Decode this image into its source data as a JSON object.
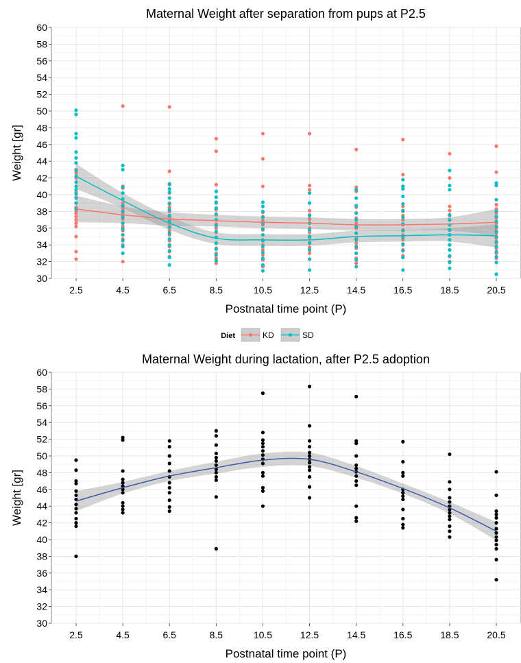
{
  "chart_data": [
    {
      "type": "scatter",
      "title": "Maternal Weight after separation from pups at P2.5",
      "xlabel": "Postnatal time point (P)",
      "ylabel": "Weight [gr]",
      "x": [
        2.5,
        4.5,
        6.5,
        8.5,
        10.5,
        12.5,
        14.5,
        16.5,
        18.5,
        20.5
      ],
      "x_tick_labels": [
        "2.5",
        "4.5",
        "6.5",
        "8.5",
        "10.5",
        "12.5",
        "14.5",
        "16.5",
        "18.5",
        "20.5"
      ],
      "ylim": [
        30,
        60
      ],
      "y_ticks": [
        30,
        32,
        34,
        36,
        38,
        40,
        42,
        44,
        46,
        48,
        50,
        52,
        54,
        56,
        58,
        60
      ],
      "grid": true,
      "legend": {
        "title": "Diet",
        "placement": "bottom",
        "entries": [
          "KD",
          "SD"
        ]
      },
      "series": [
        {
          "name": "KD",
          "color": "#F8766D",
          "points": [
            [
              [
                38.5,
                38.1,
                37.8,
                37.4,
                37.0,
                36.6,
                36.2,
                35.0,
                33.2,
                32.3,
                39.0,
                39.7,
                40.3,
                42.0,
                42.6,
                43.0
              ]
            ],
            [
              [
                50.6,
                41.0,
                40.8,
                39.0,
                38.6,
                38.3,
                37.8,
                37.5,
                37.1,
                36.6,
                36.2,
                35.7,
                35.2,
                34.7,
                34.0,
                32.0
              ]
            ],
            [
              [
                50.5,
                42.8,
                41.2,
                40.2,
                39.0,
                38.5,
                38.0,
                37.4,
                37.0,
                36.6,
                36.2,
                35.7,
                35.2,
                34.5,
                33.8,
                33.2,
                32.6
              ]
            ],
            [
              [
                46.7,
                45.2,
                41.2,
                39.0,
                38.2,
                37.6,
                37.0,
                36.5,
                36.0,
                35.5,
                34.9,
                34.2,
                33.6,
                33.0,
                32.4,
                31.8
              ]
            ],
            [
              [
                47.3,
                44.3,
                41.0,
                38.6,
                37.9,
                37.4,
                36.9,
                36.4,
                35.8,
                35.2,
                34.6,
                34.0,
                33.4,
                32.8,
                32.2,
                31.4
              ]
            ],
            [
              [
                47.3,
                41.1,
                40.6,
                38.1,
                37.6,
                37.1,
                36.6,
                36.0,
                35.5,
                34.9,
                34.3,
                33.7,
                33.0,
                32.3
              ]
            ],
            [
              [
                45.4,
                40.9,
                40.4,
                38.5,
                37.8,
                37.2,
                36.6,
                36.0,
                35.4,
                34.8,
                34.2,
                33.6,
                33.0,
                32.4,
                31.8
              ]
            ],
            [
              [
                46.6,
                42.4,
                41.0,
                38.6,
                38.0,
                37.5,
                37.0,
                36.4,
                35.8,
                35.2,
                34.6,
                34.0,
                33.4,
                32.7
              ]
            ],
            [
              [
                44.9,
                42.0,
                38.6,
                38.1,
                37.5,
                37.0,
                36.4,
                35.8,
                35.2,
                34.6,
                34.0,
                33.4,
                32.6,
                32.0
              ]
            ],
            [
              [
                45.8,
                42.7,
                38.8,
                38.3,
                37.8,
                37.2,
                36.6,
                36.0,
                35.4,
                34.8,
                34.2,
                33.6,
                33.0,
                32.4
              ]
            ]
          ],
          "smooth": [
            38.3,
            37.6,
            37.1,
            36.9,
            36.7,
            36.6,
            36.4,
            36.4,
            36.5,
            36.7
          ]
        },
        {
          "name": "SD",
          "color": "#00BFC4",
          "points": [
            [
              [
                50.1,
                49.6,
                47.3,
                46.8,
                45.1,
                44.4,
                43.8,
                42.9,
                42.2,
                41.5,
                41.0,
                40.6,
                40.1,
                39.6,
                39.0,
                38.3
              ]
            ],
            [
              [
                43.5,
                43.0,
                40.9,
                40.2,
                39.5,
                38.7,
                38.0,
                37.3,
                36.6,
                35.9,
                35.2,
                34.5,
                33.8,
                33.0
              ]
            ],
            [
              [
                41.3,
                40.7,
                40.3,
                39.6,
                38.9,
                38.2,
                37.5,
                36.8,
                36.1,
                35.4,
                34.7,
                34.0,
                33.3,
                32.5,
                31.6
              ]
            ],
            [
              [
                40.4,
                39.7,
                39.1,
                38.4,
                37.7,
                37.0,
                36.3,
                35.6,
                34.9,
                34.2,
                33.5,
                32.8,
                32.1
              ]
            ],
            [
              [
                39.1,
                38.6,
                38.0,
                37.3,
                36.6,
                35.9,
                35.2,
                34.5,
                33.8,
                33.1,
                32.4,
                31.6,
                30.9
              ]
            ],
            [
              [
                40.2,
                39.0,
                37.5,
                36.6,
                35.8,
                35.0,
                34.2,
                33.4,
                32.3,
                31.0
              ]
            ],
            [
              [
                40.6,
                39.6,
                38.7,
                37.8,
                37.0,
                36.2,
                35.4,
                34.6,
                33.8,
                33.0,
                32.2,
                31.4
              ]
            ],
            [
              [
                41.8,
                41.0,
                40.7,
                39.8,
                38.9,
                38.1,
                37.3,
                36.5,
                35.7,
                34.9,
                34.1,
                33.3,
                32.5,
                31.0
              ]
            ],
            [
              [
                42.9,
                41.1,
                40.6,
                37.6,
                37.0,
                36.4,
                35.8,
                35.2,
                34.6,
                34.0,
                33.4,
                32.7,
                31.9,
                31.2
              ]
            ],
            [
              [
                41.4,
                41.1,
                39.4,
                38.0,
                37.4,
                36.8,
                36.2,
                35.6,
                35.0,
                34.4,
                33.8,
                33.2,
                32.6,
                31.9,
                30.5
              ]
            ]
          ],
          "smooth": [
            42.2,
            39.3,
            36.6,
            34.8,
            34.6,
            34.6,
            35.0,
            35.1,
            35.2,
            35.1
          ]
        }
      ]
    },
    {
      "type": "scatter",
      "title": "Maternal Weight during lactation, after P2.5 adoption",
      "xlabel": "Postnatal time point (P)",
      "ylabel": "Weight [gr]",
      "x": [
        2.5,
        4.5,
        6.5,
        8.5,
        10.5,
        12.5,
        14.5,
        16.5,
        18.5,
        20.5
      ],
      "x_tick_labels": [
        "2.5",
        "4.5",
        "6.5",
        "8.5",
        "10.5",
        "12.5",
        "14.5",
        "16.5",
        "18.5",
        "20.5"
      ],
      "ylim": [
        30,
        60
      ],
      "y_ticks": [
        30,
        32,
        34,
        36,
        38,
        40,
        42,
        44,
        46,
        48,
        50,
        52,
        54,
        56,
        58,
        60
      ],
      "grid": true,
      "series": [
        {
          "color": "#000000",
          "points": [
            [
              [
                49.5,
                48.3,
                47.0,
                46.7,
                45.8,
                45.3,
                44.8,
                44.2,
                43.7,
                43.2,
                42.5,
                42.0,
                41.6,
                38.0
              ]
            ],
            [
              [
                52.2,
                51.9,
                48.2,
                47.2,
                46.8,
                46.4,
                46.0,
                45.6,
                44.4,
                44.0,
                43.6,
                43.2
              ]
            ],
            [
              [
                51.8,
                51.1,
                50.0,
                49.1,
                48.2,
                47.5,
                46.8,
                46.2,
                45.6,
                44.7,
                43.9,
                43.4
              ]
            ],
            [
              [
                53.0,
                52.4,
                51.3,
                50.3,
                49.8,
                49.4,
                48.9,
                48.4,
                48.0,
                47.5,
                47.1,
                45.1,
                38.9
              ]
            ],
            [
              [
                57.5,
                52.8,
                51.9,
                51.5,
                51.1,
                50.6,
                50.1,
                49.6,
                49.1,
                48.0,
                47.6,
                46.2,
                45.8,
                44.0
              ]
            ],
            [
              [
                58.3,
                53.6,
                51.8,
                51.1,
                50.4,
                50.0,
                49.6,
                49.2,
                48.7,
                48.3,
                47.5,
                46.3,
                45.0
              ]
            ],
            [
              [
                57.1,
                51.8,
                51.5,
                50.0,
                48.9,
                48.5,
                48.1,
                47.6,
                47.0,
                46.5,
                44.0,
                42.6,
                42.2
              ]
            ],
            [
              [
                51.7,
                49.3,
                48.0,
                47.6,
                46.0,
                45.6,
                45.2,
                44.8,
                43.6,
                42.5,
                41.8,
                41.4
              ]
            ],
            [
              [
                50.2,
                46.9,
                46.0,
                45.0,
                44.5,
                44.0,
                43.6,
                43.2,
                42.8,
                42.4,
                41.6,
                41.0,
                40.3
              ]
            ],
            [
              [
                48.1,
                45.3,
                43.4,
                43.0,
                42.6,
                42.0,
                41.3,
                40.8,
                40.3,
                39.9,
                39.4,
                38.9,
                37.6,
                35.2
              ]
            ]
          ],
          "smooth": [
            44.6,
            46.2,
            47.6,
            48.6,
            49.5,
            49.6,
            48.1,
            46.1,
            43.8,
            41.0
          ]
        }
      ]
    }
  ]
}
